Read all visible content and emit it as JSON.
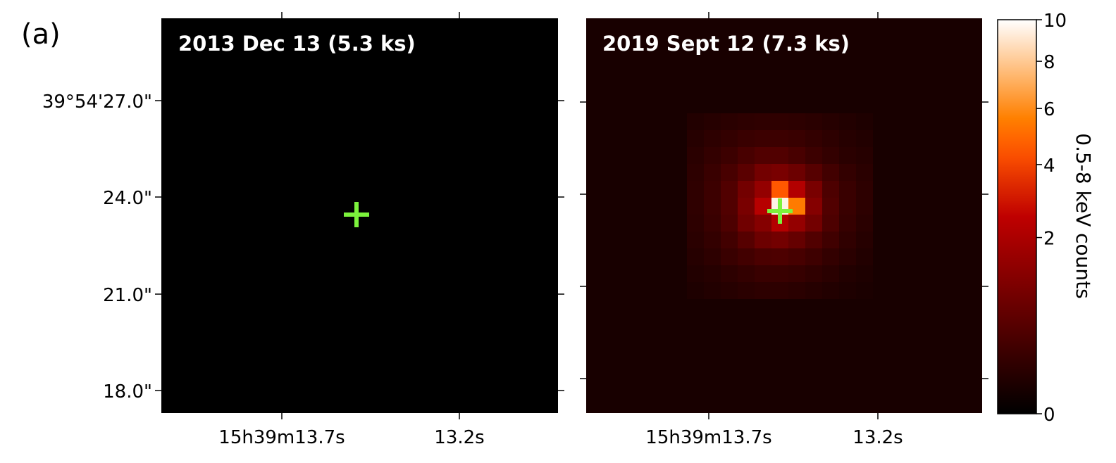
{
  "figure": {
    "panel_label": "(a)"
  },
  "chart_data": [
    {
      "type": "heatmap",
      "title": "2013 Dec 13 (5.3 ks)",
      "xlabel": "",
      "ylabel": "",
      "x_ticks": [
        "15h39m13.7s",
        "13.2s"
      ],
      "y_ticks": [
        "39°54'27.0\"",
        "24.0\"",
        "21.0\"",
        "18.0\""
      ],
      "y_tick_values_arcsec": [
        27.0,
        24.0,
        21.0,
        18.0
      ],
      "pixel_values": [
        [
          0
        ]
      ],
      "marker": {
        "shape": "cross",
        "color": "#7cf23c"
      },
      "background_color": "#000000"
    },
    {
      "type": "heatmap",
      "title": "2019 Sept 12 (7.3 ks)",
      "xlabel": "",
      "ylabel": "",
      "x_ticks": [
        "15h39m13.7s",
        "13.2s"
      ],
      "grid_rows": 11,
      "grid_cols": 11,
      "pixel_values": [
        [
          0.08,
          0.1,
          0.12,
          0.14,
          0.15,
          0.15,
          0.14,
          0.12,
          0.1,
          0.08,
          0.06
        ],
        [
          0.1,
          0.14,
          0.18,
          0.22,
          0.25,
          0.25,
          0.22,
          0.18,
          0.14,
          0.1,
          0.08
        ],
        [
          0.12,
          0.18,
          0.25,
          0.35,
          0.45,
          0.45,
          0.35,
          0.25,
          0.18,
          0.12,
          0.1
        ],
        [
          0.14,
          0.22,
          0.35,
          0.55,
          0.9,
          1.0,
          0.8,
          0.5,
          0.3,
          0.18,
          0.12
        ],
        [
          0.15,
          0.25,
          0.45,
          0.9,
          1.5,
          4.5,
          2.2,
          1.0,
          0.4,
          0.22,
          0.14
        ],
        [
          0.15,
          0.25,
          0.45,
          1.0,
          2.3,
          9.5,
          5.5,
          1.2,
          0.45,
          0.22,
          0.14
        ],
        [
          0.14,
          0.22,
          0.4,
          0.85,
          1.2,
          2.2,
          1.5,
          0.9,
          0.4,
          0.2,
          0.12
        ],
        [
          0.12,
          0.18,
          0.3,
          0.5,
          0.8,
          0.9,
          0.7,
          0.45,
          0.28,
          0.16,
          0.1
        ],
        [
          0.1,
          0.14,
          0.22,
          0.3,
          0.38,
          0.4,
          0.34,
          0.26,
          0.18,
          0.12,
          0.08
        ],
        [
          0.08,
          0.1,
          0.14,
          0.18,
          0.22,
          0.22,
          0.2,
          0.16,
          0.12,
          0.08,
          0.06
        ],
        [
          0.06,
          0.08,
          0.1,
          0.12,
          0.14,
          0.14,
          0.12,
          0.1,
          0.08,
          0.06,
          0.05
        ]
      ],
      "marker": {
        "shape": "cross",
        "color": "#7cf23c"
      }
    }
  ],
  "colorbar": {
    "label": "0.5-8 keV counts",
    "colormap": "gist_heat",
    "scale": "sqrt",
    "range": [
      0,
      10
    ],
    "tick_values": [
      0,
      2,
      4,
      6,
      8,
      10
    ],
    "tick_labels": [
      "0",
      "2",
      "4",
      "6",
      "8",
      "10"
    ]
  },
  "colors": {
    "marker": "#7cf23c",
    "title_text": "#ffffff",
    "axis": "#000000"
  }
}
